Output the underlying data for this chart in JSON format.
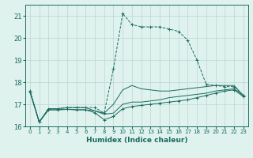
{
  "xlabel": "Humidex (Indice chaleur)",
  "bg_color": "#dff2ee",
  "grid_color": "#b8d8d2",
  "line_color": "#1a6b60",
  "xlim": [
    -0.5,
    23.5
  ],
  "ylim": [
    16.0,
    21.5
  ],
  "yticks": [
    16,
    17,
    18,
    19,
    20,
    21
  ],
  "xticks": [
    0,
    1,
    2,
    3,
    4,
    5,
    6,
    7,
    8,
    9,
    10,
    11,
    12,
    13,
    14,
    15,
    16,
    17,
    18,
    19,
    20,
    21,
    22,
    23
  ],
  "lines": [
    {
      "x": [
        0,
        1,
        2,
        3,
        4,
        5,
        6,
        7,
        8,
        9,
        10,
        11,
        12,
        13,
        14,
        15,
        16,
        17,
        18,
        19,
        20,
        21,
        22,
        23
      ],
      "y": [
        17.6,
        16.2,
        16.8,
        16.8,
        16.85,
        16.85,
        16.85,
        16.85,
        16.6,
        18.6,
        21.1,
        20.6,
        20.5,
        20.5,
        20.5,
        20.4,
        20.3,
        19.9,
        19.0,
        17.9,
        17.85,
        17.8,
        17.8,
        17.4
      ],
      "linestyle": "--",
      "marker": "+"
    },
    {
      "x": [
        0,
        1,
        2,
        3,
        4,
        5,
        6,
        7,
        8,
        9,
        10,
        11,
        12,
        13,
        14,
        15,
        16,
        17,
        18,
        19,
        20,
        21,
        22,
        23
      ],
      "y": [
        17.6,
        16.2,
        16.8,
        16.8,
        16.85,
        16.85,
        16.85,
        16.7,
        16.6,
        17.0,
        17.65,
        17.85,
        17.7,
        17.65,
        17.6,
        17.6,
        17.65,
        17.7,
        17.75,
        17.8,
        17.85,
        17.85,
        17.85,
        17.4
      ],
      "linestyle": "-",
      "marker": null
    },
    {
      "x": [
        0,
        1,
        2,
        3,
        4,
        5,
        6,
        7,
        8,
        9,
        10,
        11,
        12,
        13,
        14,
        15,
        16,
        17,
        18,
        19,
        20,
        21,
        22,
        23
      ],
      "y": [
        17.6,
        16.2,
        16.75,
        16.75,
        16.78,
        16.75,
        16.75,
        16.7,
        16.55,
        16.6,
        17.0,
        17.1,
        17.1,
        17.15,
        17.2,
        17.3,
        17.35,
        17.4,
        17.45,
        17.5,
        17.6,
        17.65,
        17.7,
        17.4
      ],
      "linestyle": "-",
      "marker": null
    },
    {
      "x": [
        0,
        1,
        2,
        3,
        4,
        5,
        6,
        7,
        8,
        9,
        10,
        11,
        12,
        13,
        14,
        15,
        16,
        17,
        18,
        19,
        20,
        21,
        22,
        23
      ],
      "y": [
        17.55,
        16.2,
        16.75,
        16.75,
        16.77,
        16.75,
        16.75,
        16.62,
        16.3,
        16.45,
        16.8,
        16.9,
        16.95,
        17.0,
        17.05,
        17.1,
        17.15,
        17.2,
        17.3,
        17.4,
        17.5,
        17.6,
        17.65,
        17.35
      ],
      "linestyle": "-",
      "marker": "+"
    }
  ]
}
